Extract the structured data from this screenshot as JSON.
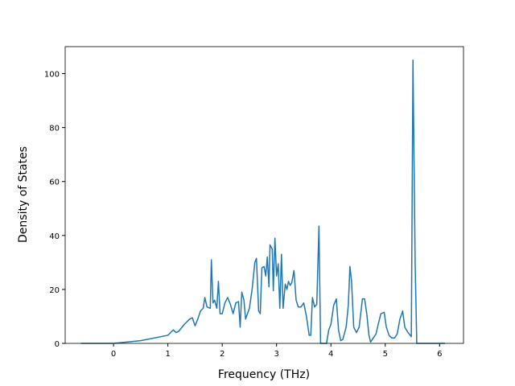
{
  "chart_data": {
    "type": "line",
    "x_label": "Frequency (THz)",
    "y_label": "Density of States",
    "x": [
      -0.6,
      0.0,
      0.5,
      1.0,
      1.1,
      1.15,
      1.2,
      1.3,
      1.4,
      1.45,
      1.5,
      1.55,
      1.6,
      1.65,
      1.68,
      1.72,
      1.78,
      1.8,
      1.83,
      1.86,
      1.9,
      1.93,
      1.96,
      2.0,
      2.05,
      2.1,
      2.15,
      2.2,
      2.25,
      2.3,
      2.33,
      2.36,
      2.4,
      2.43,
      2.5,
      2.55,
      2.6,
      2.63,
      2.67,
      2.7,
      2.73,
      2.77,
      2.8,
      2.83,
      2.86,
      2.88,
      2.92,
      2.94,
      2.97,
      3.0,
      3.03,
      3.06,
      3.09,
      3.12,
      3.16,
      3.19,
      3.22,
      3.25,
      3.28,
      3.32,
      3.36,
      3.4,
      3.45,
      3.5,
      3.55,
      3.6,
      3.63,
      3.66,
      3.7,
      3.74,
      3.78,
      3.81,
      3.88,
      3.92,
      3.96,
      4.0,
      4.05,
      4.1,
      4.14,
      4.18,
      4.22,
      4.28,
      4.32,
      4.35,
      4.38,
      4.42,
      4.47,
      4.52,
      4.58,
      4.62,
      4.66,
      4.7,
      4.73,
      4.78,
      4.83,
      4.87,
      4.92,
      4.98,
      5.02,
      5.07,
      5.12,
      5.17,
      5.22,
      5.27,
      5.32,
      5.36,
      5.42,
      5.48,
      5.51,
      5.55,
      5.58,
      6.1
    ],
    "series": [
      {
        "color": "#1f77b4",
        "values": [
          0,
          0,
          1,
          3,
          5,
          4,
          4.5,
          7,
          9,
          9.5,
          6.5,
          9,
          12,
          13,
          17,
          13.5,
          13,
          31,
          15,
          16,
          13,
          23,
          11,
          11,
          15,
          17,
          14.5,
          11,
          15,
          15.5,
          6,
          19,
          16,
          9,
          13,
          20,
          30,
          31.5,
          12,
          11,
          28,
          28.5,
          25,
          32,
          21,
          36.5,
          35,
          19.5,
          39,
          25,
          29.5,
          13,
          33,
          13,
          22,
          20,
          23,
          21.5,
          22.5,
          27,
          16,
          13.5,
          13.5,
          15,
          10,
          3,
          3,
          17,
          13.5,
          14.5,
          43.5,
          0,
          0,
          0,
          5,
          7,
          14,
          16.5,
          5,
          1,
          1.5,
          6,
          14,
          28.5,
          23,
          6,
          4,
          6,
          16.5,
          16.5,
          11,
          3,
          0.5,
          2,
          3.5,
          7,
          11,
          11.5,
          6,
          3,
          2,
          2,
          3.5,
          9,
          12,
          6,
          4,
          2.5,
          105,
          30,
          0,
          0
        ]
      }
    ],
    "xlim": [
      -0.89,
      6.44
    ],
    "ylim": [
      0,
      110
    ],
    "xticks": [
      0,
      1,
      2,
      3,
      4,
      5,
      6
    ],
    "yticks": [
      0,
      20,
      40,
      60,
      80,
      100
    ]
  }
}
